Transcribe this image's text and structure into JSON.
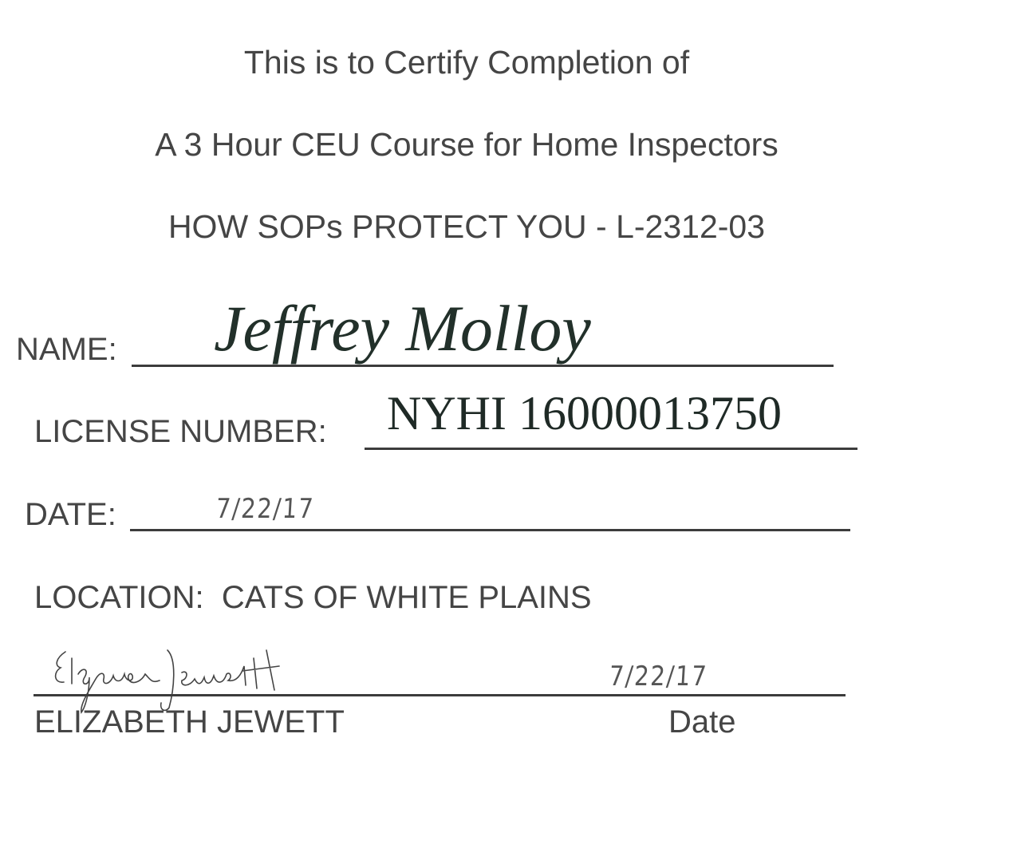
{
  "certificate": {
    "heading": "This is to Certify Completion of",
    "course": "A 3 Hour CEU Course for Home Inspectors",
    "course_title": "HOW SOPs PROTECT YOU - L-2312-03",
    "fields": {
      "name_label": "NAME:",
      "name_value": "Jeffrey Molloy",
      "license_label": "LICENSE NUMBER:",
      "license_value": "NYHI 16000013750",
      "date_label": "DATE:",
      "date_value": "7/22/17",
      "location_label": "LOCATION:",
      "location_value": "CATS OF WHITE PLAINS"
    },
    "signature": {
      "signature_handwritten": "Elizabeth Jewett",
      "signer_name": "ELIZABETH JEWETT",
      "date_label": "Date",
      "date_value": "7/22/17"
    }
  }
}
